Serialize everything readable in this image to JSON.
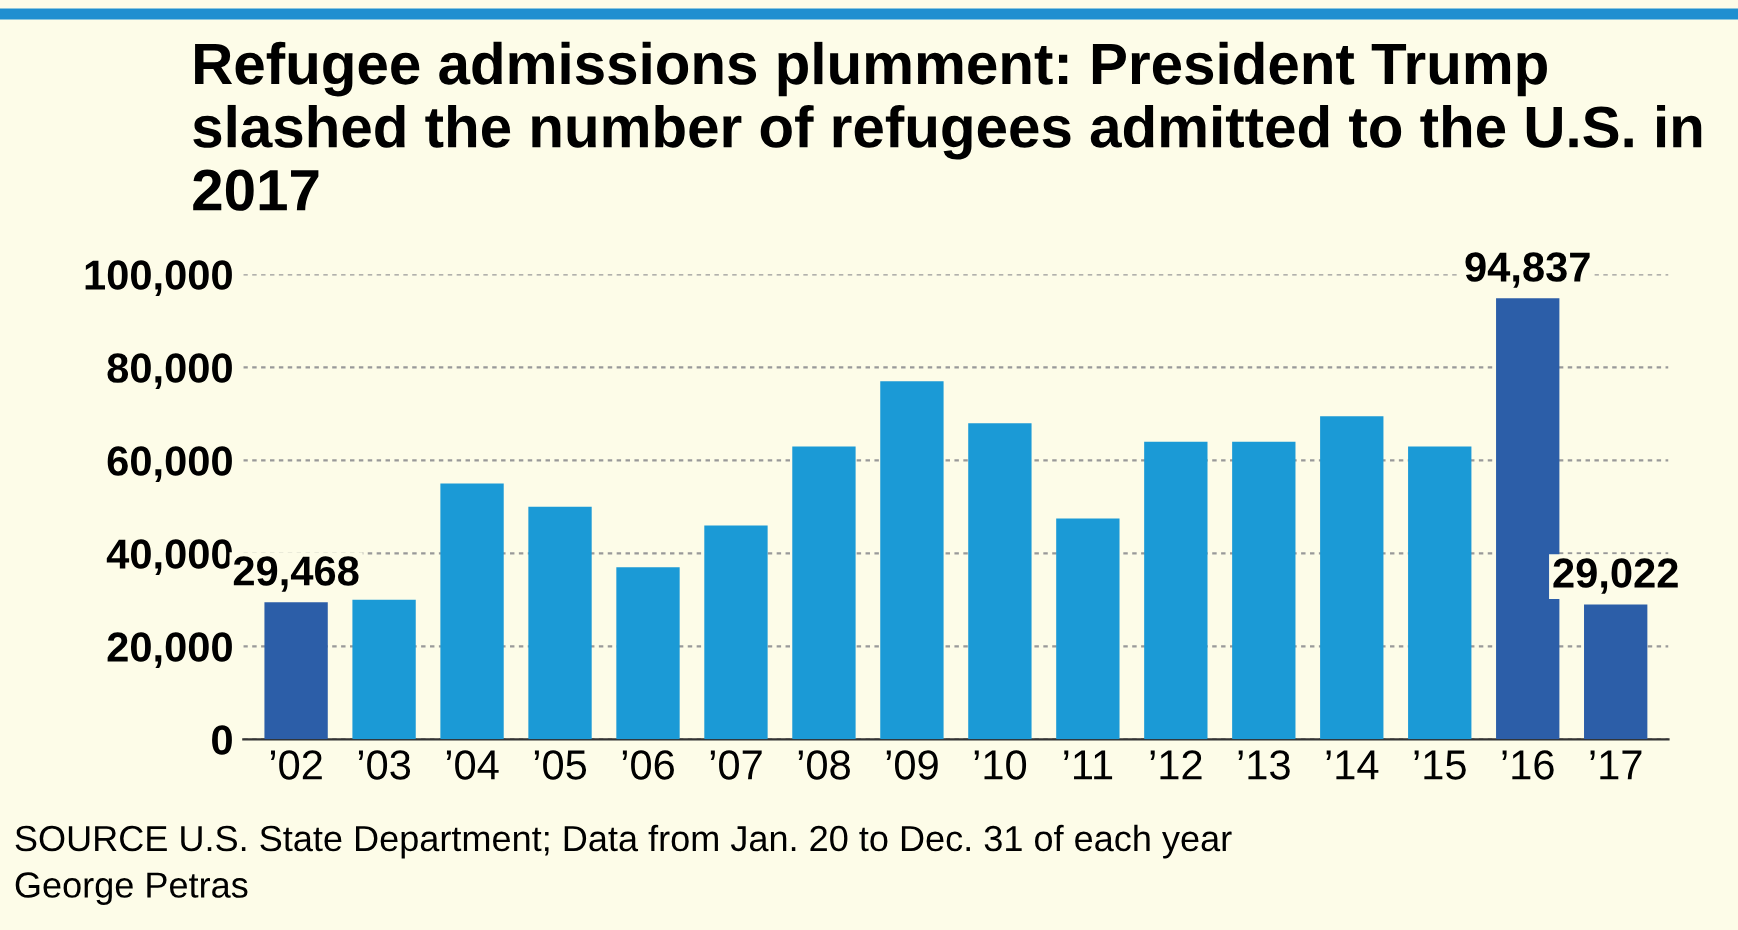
{
  "chart_data": {
    "type": "bar",
    "title": "Refugee admissions plumment: President Trump slashed the number of refugees admitted to the U.S. in 2017",
    "categories": [
      "’02",
      "’03",
      "’04",
      "’05",
      "’06",
      "’07",
      "’08",
      "’09",
      "’10",
      "’11",
      "’12",
      "’13",
      "’14",
      "’15",
      "’16",
      "’17"
    ],
    "values": [
      29468,
      30000,
      55000,
      50000,
      37000,
      46000,
      63000,
      77000,
      68000,
      47500,
      64000,
      64000,
      69500,
      63000,
      94837,
      29022
    ],
    "colors": [
      "#2c5ea8",
      "#1b9ad6",
      "#1b9ad6",
      "#1b9ad6",
      "#1b9ad6",
      "#1b9ad6",
      "#1b9ad6",
      "#1b9ad6",
      "#1b9ad6",
      "#1b9ad6",
      "#1b9ad6",
      "#1b9ad6",
      "#1b9ad6",
      "#1b9ad6",
      "#2c5ea8",
      "#2c5ea8"
    ],
    "value_labels": [
      "29,468",
      null,
      null,
      null,
      null,
      null,
      null,
      null,
      null,
      null,
      null,
      null,
      null,
      null,
      "94,837",
      "29,022"
    ],
    "ylim": [
      0,
      100000
    ],
    "yticks": [
      {
        "value": 0,
        "label": "0"
      },
      {
        "value": 20000,
        "label": "20,000"
      },
      {
        "value": 40000,
        "label": "40,000"
      },
      {
        "value": 60000,
        "label": "60,000"
      },
      {
        "value": 80000,
        "label": "80,000"
      },
      {
        "value": 100000,
        "label": "100,000"
      }
    ],
    "grid": "y",
    "annotations": [
      "SOURCE U.S. State Department; Data from Jan. 20 to Dec. 31 of each year",
      "George Petras"
    ]
  }
}
